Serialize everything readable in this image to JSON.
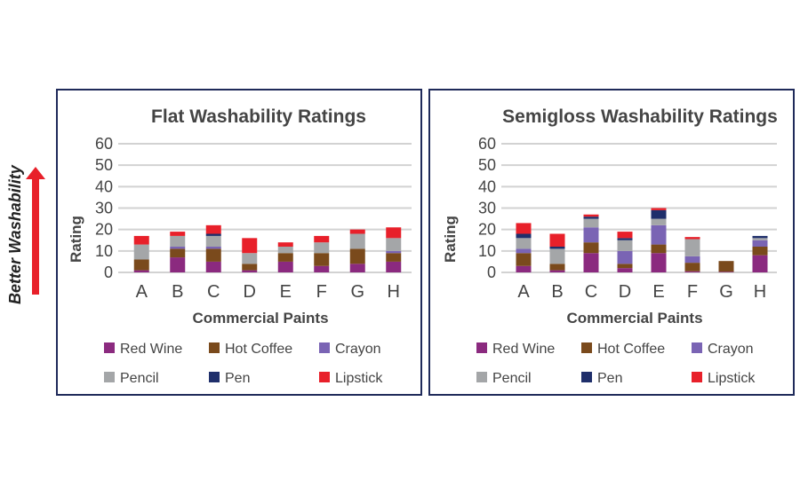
{
  "side_label": {
    "text": "Better Washability",
    "arrow_color": "#e8202a"
  },
  "series_colors": {
    "Red Wine": "#8b2a7f",
    "Hot Coffee": "#7a4a1c",
    "Crayon": "#7a64b4",
    "Pencil": "#a4a6a8",
    "Pen": "#1f2f6b",
    "Lipstick": "#e8202a"
  },
  "chart_data": [
    {
      "type": "bar",
      "stacked": true,
      "title": "Flat Washability Ratings",
      "xlabel": "Commercial Paints",
      "ylabel": "Rating",
      "ylim": [
        0,
        60
      ],
      "yticks": [
        "0",
        "10",
        "20",
        "30",
        "40",
        "50",
        "60"
      ],
      "grid": true,
      "legend": "bottom",
      "categories": [
        "A",
        "B",
        "C",
        "D",
        "E",
        "F",
        "G",
        "H"
      ],
      "series": [
        {
          "name": "Red Wine",
          "values": [
            1,
            7,
            5,
            1,
            5,
            3,
            4,
            5
          ]
        },
        {
          "name": "Hot Coffee",
          "values": [
            5,
            4,
            6,
            3,
            4,
            6,
            7,
            4
          ]
        },
        {
          "name": "Crayon",
          "values": [
            0,
            1,
            1,
            0,
            0,
            0,
            0,
            1
          ]
        },
        {
          "name": "Pencil",
          "values": [
            7,
            5,
            5,
            5,
            3,
            5,
            7,
            6
          ]
        },
        {
          "name": "Pen",
          "values": [
            0,
            0,
            1,
            0,
            0,
            0,
            0,
            0
          ]
        },
        {
          "name": "Lipstick",
          "values": [
            4,
            2,
            4,
            7,
            2,
            3,
            2,
            5
          ]
        }
      ]
    },
    {
      "type": "bar",
      "stacked": true,
      "title": "Semigloss Washability Ratings",
      "xlabel": "Commercial Paints",
      "ylabel": "Rating",
      "ylim": [
        0,
        60
      ],
      "yticks": [
        "0",
        "10",
        "20",
        "30",
        "40",
        "50",
        "60"
      ],
      "grid": true,
      "legend": "bottom",
      "categories": [
        "A",
        "B",
        "C",
        "D",
        "E",
        "F",
        "G",
        "H"
      ],
      "series": [
        {
          "name": "Red Wine",
          "values": [
            3,
            1,
            9,
            2,
            9,
            0.5,
            0.3,
            8
          ]
        },
        {
          "name": "Hot Coffee",
          "values": [
            6,
            3,
            5,
            2,
            4,
            4,
            5,
            4
          ]
        },
        {
          "name": "Crayon",
          "values": [
            2,
            0,
            7,
            6,
            9,
            3,
            0,
            3
          ]
        },
        {
          "name": "Pencil",
          "values": [
            5,
            7,
            4,
            5,
            3,
            8,
            0,
            1
          ]
        },
        {
          "name": "Pen",
          "values": [
            2,
            1,
            1,
            1,
            4,
            0,
            0,
            1
          ]
        },
        {
          "name": "Lipstick",
          "values": [
            5,
            6,
            1,
            3,
            1,
            1,
            0,
            0
          ]
        }
      ]
    }
  ]
}
